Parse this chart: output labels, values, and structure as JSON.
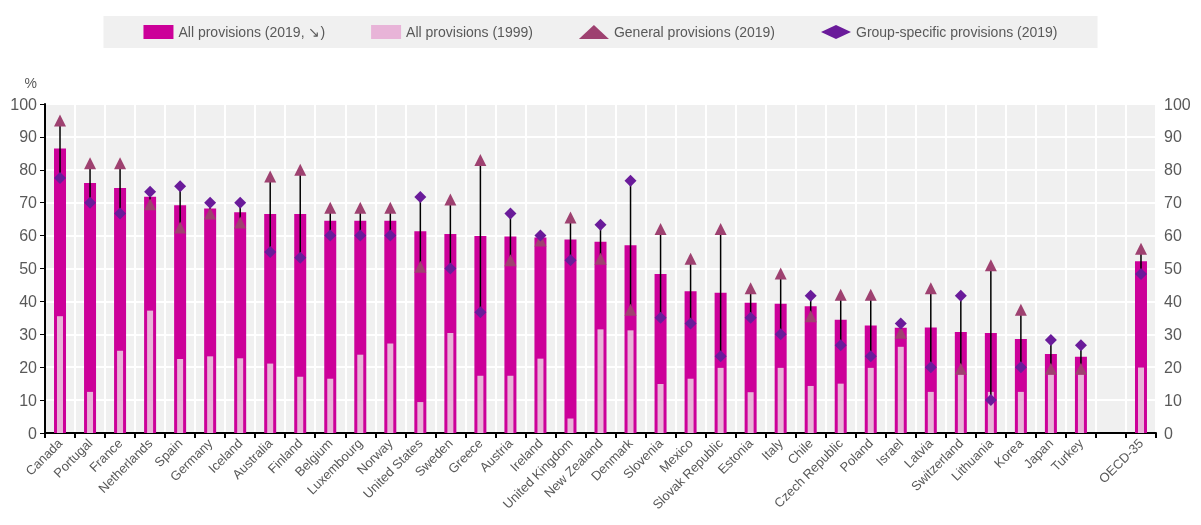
{
  "chart_data": {
    "type": "bar",
    "ylabel": "%",
    "legend": "top",
    "grid": true,
    "categories": [
      "Canada",
      "Portugal",
      "France",
      "Netherlands",
      "Spain",
      "Germany",
      "Iceland",
      "Australia",
      "Finland",
      "Belgium",
      "Luxembourg",
      "Norway",
      "United States",
      "Sweden",
      "Greece",
      "Austria",
      "Ireland",
      "United Kingdom",
      "New Zealand",
      "Denmark",
      "Slovenia",
      "Mexico",
      "Slovak Republic",
      "Estonia",
      "Italy",
      "Chile",
      "Czech Republic",
      "Poland",
      "Israel",
      "Latvia",
      "Switzerland",
      "Lithuania",
      "Korea",
      "Japan",
      "Turkey",
      null,
      "OECD-35"
    ],
    "ylim": [
      0,
      100
    ],
    "yticks": [
      0,
      10,
      20,
      30,
      40,
      50,
      60,
      70,
      80,
      90,
      100
    ],
    "y2lim": [
      0,
      100
    ],
    "y2ticks": [
      0,
      10,
      20,
      30,
      40,
      50,
      60,
      70,
      80,
      90,
      100
    ],
    "series": [
      {
        "name": "All provisions (2019, ↘)",
        "color": "#cc0099",
        "values": [
          86.5,
          76,
          74.5,
          71.8,
          69.2,
          68.2,
          67.1,
          66.6,
          66.6,
          64.5,
          64.5,
          64.5,
          61.3,
          60.5,
          59.9,
          59.7,
          59.4,
          58.8,
          58.1,
          57.1,
          48.3,
          43.1,
          42.6,
          39.6,
          39.3,
          38.5,
          34.4,
          32.7,
          32,
          32.1,
          30.7,
          30.4,
          28.6,
          24,
          23.2,
          null,
          52.2
        ]
      },
      {
        "name": "All provisions (1999)",
        "color": "#e8b4d8",
        "values": [
          35.5,
          12.5,
          25,
          37.2,
          22.5,
          23.3,
          22.7,
          21.1,
          17.1,
          16.5,
          23.8,
          27.2,
          9.4,
          30.4,
          17.4,
          17.4,
          22.6,
          4.4,
          31.5,
          31.2,
          14.9,
          16.5,
          19.8,
          12.4,
          19.8,
          14.3,
          15,
          19.8,
          26.2,
          12.5,
          17.8,
          12.5,
          12.5,
          17.8,
          17.8,
          null,
          19.9
        ]
      },
      {
        "name": "General provisions (2019)",
        "type": "scatter",
        "marker": "triangle",
        "color": "#9e4170",
        "values": [
          95,
          82,
          82,
          69.5,
          62.5,
          66.7,
          64,
          78,
          80,
          68.5,
          68.5,
          68.5,
          50.5,
          71,
          83,
          52.5,
          58.5,
          65.5,
          53,
          37.5,
          62,
          53,
          62,
          44,
          48.5,
          35.5,
          42,
          42,
          30.5,
          44,
          19.5,
          51,
          37.5,
          19.5,
          19.5,
          null,
          56
        ]
      },
      {
        "name": "Group-specific provisions (2019)",
        "type": "scatter",
        "marker": "diamond",
        "color": "#6a1b9a",
        "values": [
          77.5,
          70,
          66.7,
          73.3,
          75,
          70,
          70,
          55,
          53.3,
          60,
          60,
          60,
          71.7,
          50,
          36.7,
          66.7,
          60,
          52.5,
          63.3,
          76.7,
          35,
          33.3,
          23.3,
          35,
          30,
          41.7,
          26.7,
          23.3,
          33.3,
          20,
          41.7,
          10,
          20,
          28.3,
          26.7,
          null,
          48.3
        ]
      }
    ]
  }
}
